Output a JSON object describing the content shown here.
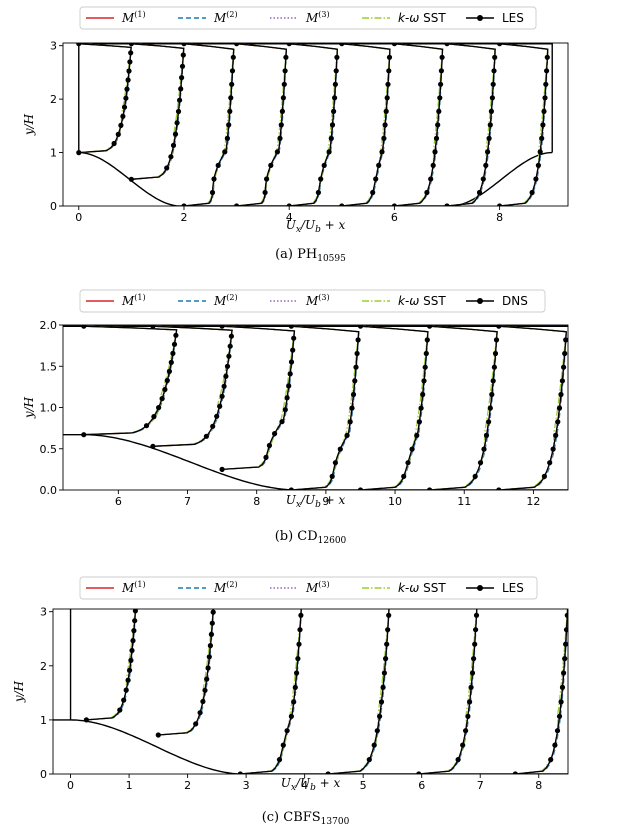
{
  "legend_sup": [
    "(1)",
    "(2)",
    "(3)"
  ],
  "chart_data": [
    {
      "id": "a",
      "type": "line",
      "caption": "(a) PH",
      "caption_sub": "10595",
      "xlabel": "U_x/U_b + x",
      "ylabel": "y/H",
      "xlim": [
        -0.3,
        9.3
      ],
      "ylim": [
        0,
        3.05
      ],
      "xticks": [
        0,
        2,
        4,
        6,
        8
      ],
      "yticks": [
        0,
        1,
        2,
        3
      ],
      "legend": [
        "M(1)",
        "M(2)",
        "M(3)",
        "k-ω SST",
        "LES"
      ],
      "legend_ref": "LES",
      "geometry": "hill",
      "hill_h": 1.0,
      "y_top": 3.036,
      "x_end": 9.0,
      "stations": [
        {
          "x": 0.0,
          "y0": 1.0,
          "ub": 1.0,
          "rev": 0.0
        },
        {
          "x": 1.0,
          "y0": 0.5,
          "ub": 1.0,
          "rev": 0.0
        },
        {
          "x": 2.0,
          "y0": 0.0,
          "ub": 0.95,
          "rev": 0.15
        },
        {
          "x": 3.0,
          "y0": 0.0,
          "ub": 0.95,
          "rev": 0.15
        },
        {
          "x": 4.0,
          "y0": 0.0,
          "ub": 0.92,
          "rev": 0.1
        },
        {
          "x": 5.0,
          "y0": 0.0,
          "ub": 0.92,
          "rev": 0.05
        },
        {
          "x": 6.0,
          "y0": 0.0,
          "ub": 0.92,
          "rev": 0.0
        },
        {
          "x": 7.0,
          "y0": 0.0,
          "ub": 0.92,
          "rev": 0.0
        },
        {
          "x": 8.0,
          "y0": 0.0,
          "ub": 0.92,
          "rev": 0.0
        }
      ]
    },
    {
      "id": "b",
      "type": "line",
      "caption": "(b) CD",
      "caption_sub": "12600",
      "xlabel": "U_x/U_b + x",
      "ylabel": "y/H",
      "xlim": [
        5.2,
        12.5
      ],
      "ylim": [
        0,
        2.0
      ],
      "xticks": [
        6,
        7,
        8,
        9,
        10,
        11,
        12
      ],
      "yticks": [
        "0.0",
        "0.5",
        "1.0",
        "1.5",
        "2.0"
      ],
      "legend": [
        "M(1)",
        "M(2)",
        "M(3)",
        "k-ω SST",
        "DNS"
      ],
      "legend_ref": "DNS",
      "geometry": "diffuser",
      "hill_h": 0.67,
      "y_top": 1.985,
      "stations": [
        {
          "x": 5.5,
          "y0": 0.67,
          "ub": 1.35,
          "rev": 0.0
        },
        {
          "x": 6.5,
          "y0": 0.53,
          "ub": 1.15,
          "rev": 0.0
        },
        {
          "x": 7.5,
          "y0": 0.25,
          "ub": 1.05,
          "rev": 0.1
        },
        {
          "x": 8.5,
          "y0": 0.0,
          "ub": 0.98,
          "rev": 0.1
        },
        {
          "x": 9.5,
          "y0": 0.0,
          "ub": 0.98,
          "rev": 0.05
        },
        {
          "x": 10.5,
          "y0": 0.0,
          "ub": 0.98,
          "rev": 0.0
        },
        {
          "x": 11.5,
          "y0": 0.0,
          "ub": 0.98,
          "rev": 0.0
        }
      ]
    },
    {
      "id": "c",
      "type": "line",
      "caption": "(c) CBFS",
      "caption_sub": "13700",
      "xlabel": "U_x/U_b + x",
      "ylabel": "y/H",
      "xlim": [
        -0.3,
        8.5
      ],
      "ylim": [
        0,
        3.05
      ],
      "xticks": [
        0,
        1,
        2,
        3,
        4,
        5,
        6,
        7,
        8
      ],
      "yticks": [
        0,
        1,
        2,
        3
      ],
      "legend": [
        "M(1)",
        "M(2)",
        "M(3)",
        "k-ω SST",
        "LES"
      ],
      "legend_ref": "LES",
      "geometry": "bump",
      "hill_h": 1.0,
      "y_top": 3.2,
      "stations": [
        {
          "x": 0.27,
          "y0": 1.0,
          "ub": 0.85,
          "rev": 0.0
        },
        {
          "x": 1.5,
          "y0": 0.72,
          "ub": 0.95,
          "rev": 0.0
        },
        {
          "x": 2.9,
          "y0": 0.0,
          "ub": 1.05,
          "rev": 0.05
        },
        {
          "x": 4.4,
          "y0": 0.0,
          "ub": 1.05,
          "rev": 0.0
        },
        {
          "x": 5.95,
          "y0": 0.0,
          "ub": 1.0,
          "rev": 0.0
        },
        {
          "x": 7.6,
          "y0": 0.0,
          "ub": 0.9,
          "rev": 0.0
        }
      ]
    }
  ]
}
